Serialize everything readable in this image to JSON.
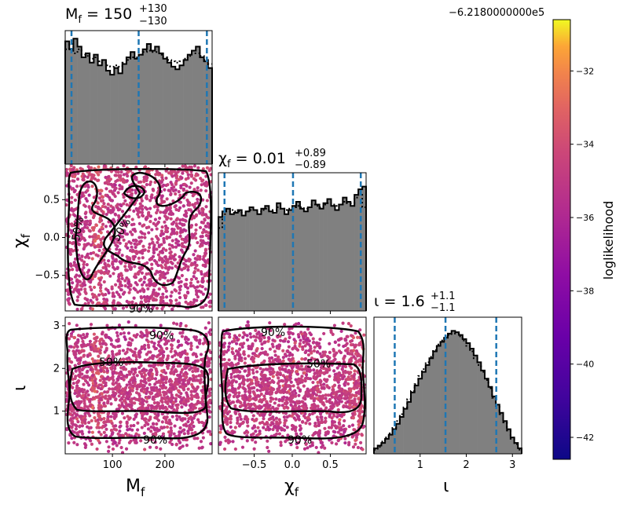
{
  "chart_data": {
    "type": "corner",
    "parameters": [
      {
        "key": "mf",
        "axis_label": "M_f",
        "title_value": "150",
        "title_plus": "+130",
        "title_minus": "−130",
        "range": [
          10,
          290
        ],
        "ticks": [
          100,
          200
        ],
        "tick_labels": [
          "100",
          "200"
        ],
        "quantiles": [
          22,
          150,
          280
        ],
        "hist_bins": [
          0.92,
          0.86,
          0.94,
          0.88,
          0.8,
          0.83,
          0.76,
          0.82,
          0.74,
          0.78,
          0.7,
          0.67,
          0.72,
          0.68,
          0.75,
          0.8,
          0.84,
          0.79,
          0.82,
          0.86,
          0.9,
          0.85,
          0.88,
          0.83,
          0.79,
          0.76,
          0.73,
          0.71,
          0.74,
          0.78,
          0.82,
          0.85,
          0.88,
          0.8,
          0.77,
          0.72
        ],
        "hist_prior": [
          0.86,
          0.9,
          0.83,
          0.86,
          0.82,
          0.81,
          0.79,
          0.8,
          0.77,
          0.76,
          0.74,
          0.73,
          0.74,
          0.73,
          0.76,
          0.78,
          0.8,
          0.8,
          0.82,
          0.84,
          0.85,
          0.84,
          0.84,
          0.82,
          0.8,
          0.78,
          0.77,
          0.76,
          0.77,
          0.79,
          0.81,
          0.83,
          0.83,
          0.81,
          0.78,
          0.75
        ]
      },
      {
        "key": "chi",
        "axis_label": "χ_f",
        "title_value": "0.01",
        "title_plus": "+0.89",
        "title_minus": "−0.89",
        "range": [
          -0.97,
          0.97
        ],
        "ticks": [
          -0.5,
          0.0,
          0.5
        ],
        "tick_labels": [
          "−0.5",
          "0.0",
          "0.5"
        ],
        "quantiles": [
          -0.89,
          0.01,
          0.9
        ],
        "hist_bins": [
          0.68,
          0.72,
          0.74,
          0.7,
          0.71,
          0.73,
          0.69,
          0.72,
          0.75,
          0.73,
          0.7,
          0.74,
          0.76,
          0.72,
          0.71,
          0.78,
          0.74,
          0.7,
          0.73,
          0.76,
          0.79,
          0.74,
          0.72,
          0.75,
          0.8,
          0.77,
          0.74,
          0.78,
          0.81,
          0.76,
          0.73,
          0.77,
          0.82,
          0.79,
          0.76,
          0.84,
          0.88,
          0.9
        ],
        "hist_prior": [
          0.6,
          0.7,
          0.72,
          0.73,
          0.72,
          0.72,
          0.71,
          0.72,
          0.73,
          0.73,
          0.72,
          0.73,
          0.74,
          0.73,
          0.73,
          0.75,
          0.74,
          0.73,
          0.74,
          0.75,
          0.76,
          0.75,
          0.74,
          0.75,
          0.77,
          0.76,
          0.75,
          0.77,
          0.78,
          0.77,
          0.76,
          0.77,
          0.79,
          0.78,
          0.78,
          0.82,
          0.84,
          0.75
        ]
      },
      {
        "key": "iota",
        "axis_label": "ι",
        "title_value": "1.6",
        "title_plus": "+1.1",
        "title_minus": "−1.1",
        "range": [
          0.0,
          3.2
        ],
        "ticks": [
          1,
          2,
          3
        ],
        "tick_labels": [
          "1",
          "2",
          "3"
        ],
        "quantiles": [
          0.45,
          1.55,
          2.65
        ],
        "hist_bins": [
          0.04,
          0.06,
          0.08,
          0.11,
          0.14,
          0.18,
          0.22,
          0.27,
          0.33,
          0.38,
          0.45,
          0.5,
          0.55,
          0.6,
          0.65,
          0.7,
          0.75,
          0.79,
          0.82,
          0.85,
          0.88,
          0.9,
          0.89,
          0.87,
          0.84,
          0.81,
          0.77,
          0.72,
          0.67,
          0.61,
          0.55,
          0.49,
          0.42,
          0.36,
          0.3,
          0.24,
          0.18,
          0.12,
          0.08,
          0.04
        ],
        "hist_prior": [
          0.03,
          0.05,
          0.09,
          0.12,
          0.15,
          0.19,
          0.24,
          0.29,
          0.34,
          0.4,
          0.46,
          0.51,
          0.57,
          0.62,
          0.67,
          0.71,
          0.76,
          0.8,
          0.83,
          0.86,
          0.87,
          0.88,
          0.88,
          0.86,
          0.83,
          0.79,
          0.75,
          0.7,
          0.65,
          0.6,
          0.54,
          0.48,
          0.41,
          0.35,
          0.29,
          0.23,
          0.17,
          0.11,
          0.07,
          0.03
        ]
      }
    ],
    "contour_labels": [
      "50%",
      "90%"
    ],
    "colorbar": {
      "label": "loglikelihood",
      "offset_text": "−6.2180000000e5",
      "range": [
        -42.6,
        -30.6
      ],
      "ticks": [
        -42,
        -40,
        -38,
        -36,
        -34,
        -32
      ],
      "tick_labels": [
        "−42",
        "−40",
        "−38",
        "−36",
        "−34",
        "−32"
      ],
      "colormap": "plasma"
    },
    "colors": {
      "hist_fill": "#808080",
      "quantile_line": "#1f77b4",
      "contour": "#000000"
    }
  }
}
